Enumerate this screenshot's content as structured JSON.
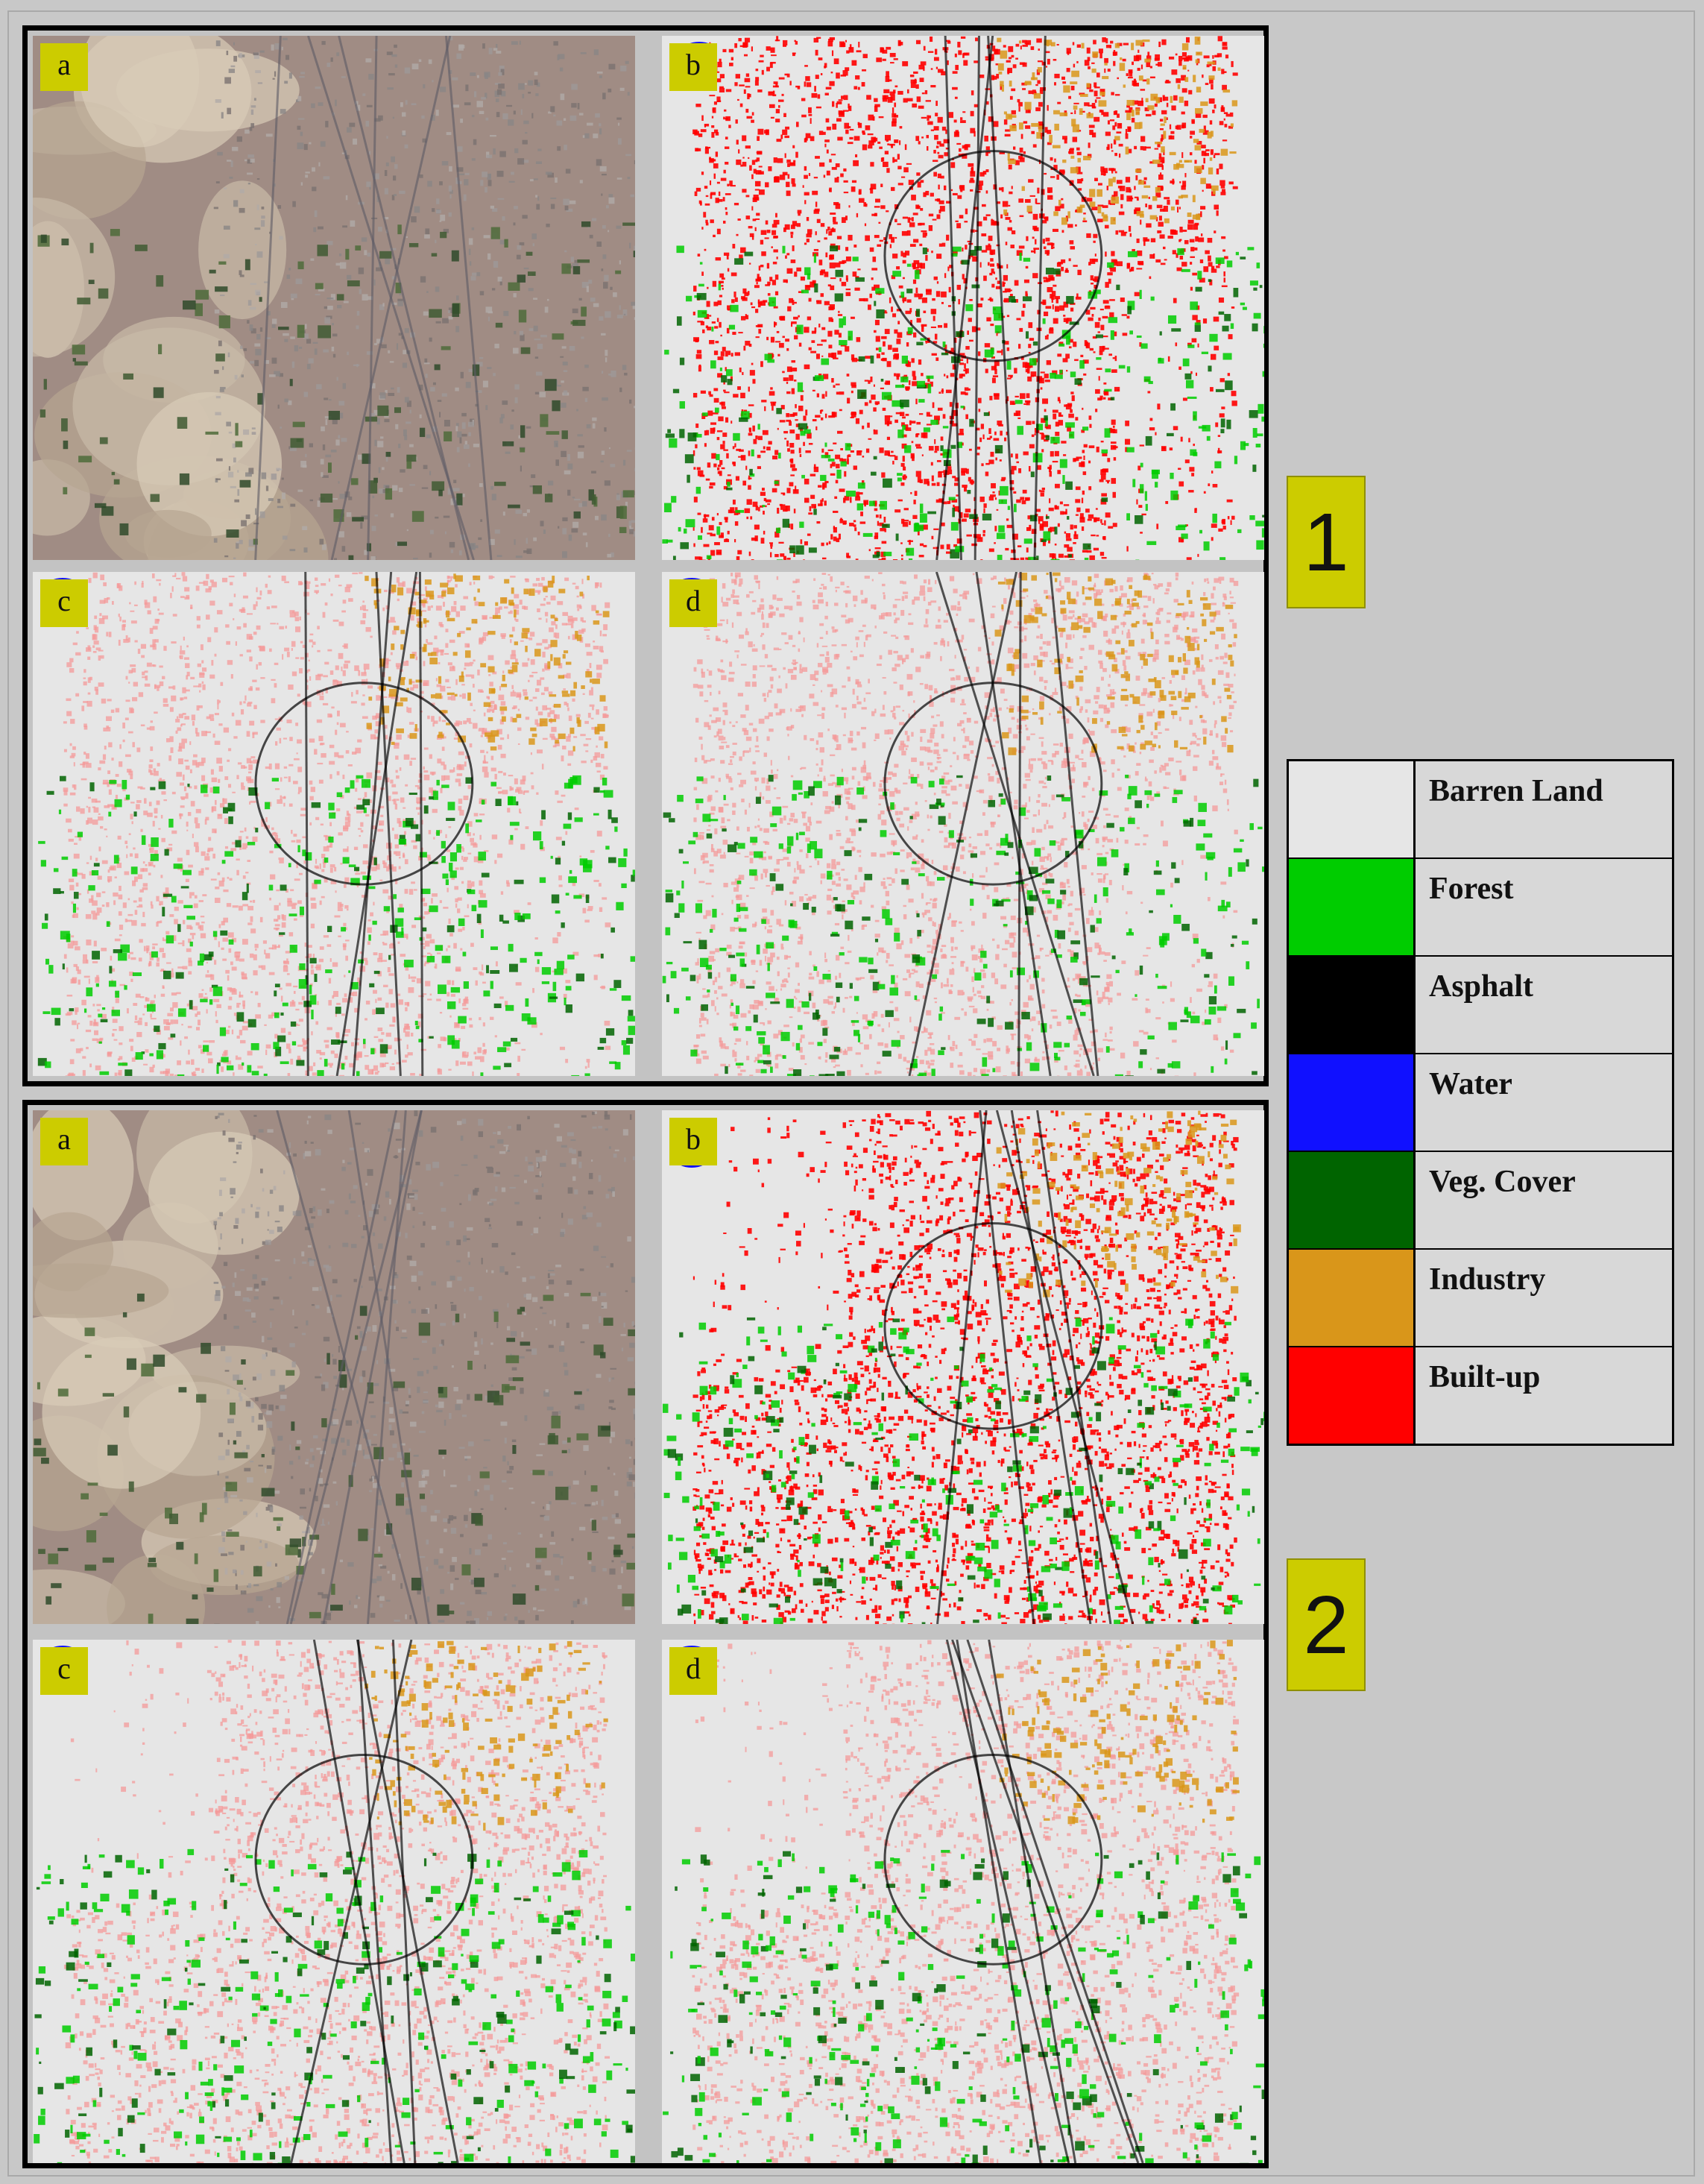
{
  "groups": [
    {
      "number": "1",
      "panels": [
        {
          "letter": "a",
          "kind": "satellite",
          "seed": 11
        },
        {
          "letter": "b",
          "kind": "class-saturated",
          "seed": 12
        },
        {
          "letter": "c",
          "kind": "class-pale",
          "seed": 13
        },
        {
          "letter": "d",
          "kind": "class-pale",
          "seed": 14
        }
      ]
    },
    {
      "number": "2",
      "panels": [
        {
          "letter": "a",
          "kind": "satellite",
          "seed": 21
        },
        {
          "letter": "b",
          "kind": "class-saturated",
          "seed": 22
        },
        {
          "letter": "c",
          "kind": "class-pale",
          "seed": 23
        },
        {
          "letter": "d",
          "kind": "class-pale",
          "seed": 24
        }
      ]
    }
  ],
  "legend": {
    "items": [
      {
        "label": "Barren Land",
        "color": "#e6e6e6"
      },
      {
        "label": "Forest",
        "color": "#00cc00"
      },
      {
        "label": "Asphalt",
        "color": "#000000"
      },
      {
        "label": "Water",
        "color": "#1010ff"
      },
      {
        "label": "Veg. Cover",
        "color": "#006400"
      },
      {
        "label": "Industry",
        "color": "#d9961a"
      },
      {
        "label": "Built-up",
        "color": "#ff0000"
      }
    ]
  }
}
